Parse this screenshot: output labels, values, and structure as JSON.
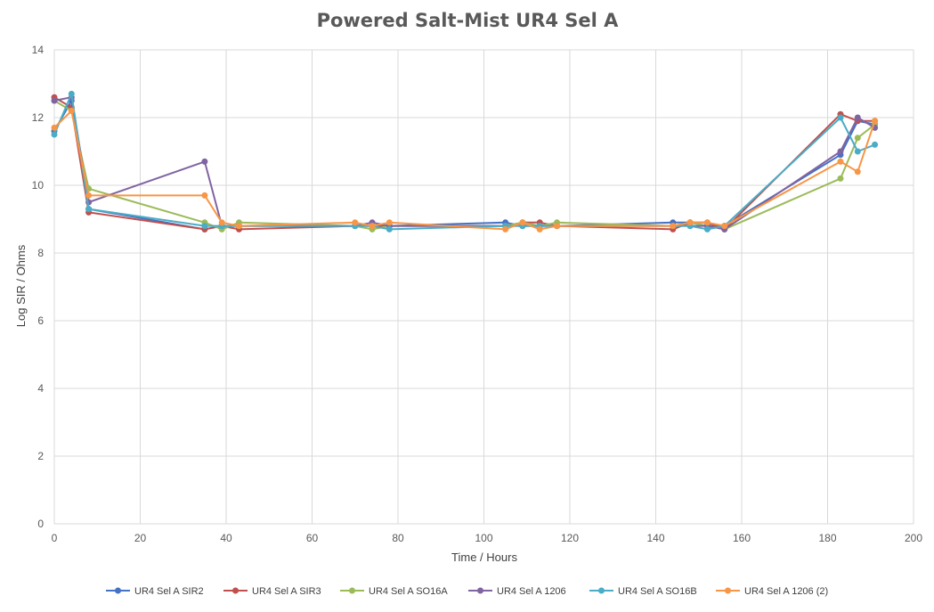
{
  "chart_data": {
    "type": "line",
    "title": "Powered Salt-Mist UR4 Sel A",
    "xlabel": "Time / Hours",
    "ylabel": "Log SIR / Ohms",
    "xlim": [
      0,
      200
    ],
    "ylim": [
      0,
      14
    ],
    "xticks": [
      0,
      20,
      40,
      60,
      80,
      100,
      120,
      140,
      160,
      180,
      200
    ],
    "yticks": [
      0,
      2,
      4,
      6,
      8,
      10,
      12,
      14
    ],
    "grid": true,
    "legend_position": "bottom",
    "series": [
      {
        "name": "UR4 Sel A SIR2",
        "color": "#4472c4",
        "points": [
          [
            0,
            11.6
          ],
          [
            4,
            12.5
          ],
          [
            8,
            9.3
          ],
          [
            35,
            8.7
          ],
          [
            39,
            8.8
          ],
          [
            43,
            8.8
          ],
          [
            70,
            8.8
          ],
          [
            74,
            8.8
          ],
          [
            78,
            8.8
          ],
          [
            105,
            8.9
          ],
          [
            109,
            8.8
          ],
          [
            113,
            8.8
          ],
          [
            117,
            8.8
          ],
          [
            144,
            8.9
          ],
          [
            148,
            8.9
          ],
          [
            152,
            8.8
          ],
          [
            156,
            8.8
          ],
          [
            183,
            10.9
          ],
          [
            187,
            11.9
          ],
          [
            191,
            11.8
          ]
        ]
      },
      {
        "name": "UR4 Sel A SIR3",
        "color": "#c0504d",
        "points": [
          [
            0,
            12.6
          ],
          [
            4,
            12.3
          ],
          [
            8,
            9.2
          ],
          [
            35,
            8.7
          ],
          [
            39,
            8.8
          ],
          [
            43,
            8.7
          ],
          [
            70,
            8.8
          ],
          [
            74,
            8.8
          ],
          [
            78,
            8.8
          ],
          [
            105,
            8.8
          ],
          [
            109,
            8.9
          ],
          [
            113,
            8.9
          ],
          [
            117,
            8.8
          ],
          [
            144,
            8.7
          ],
          [
            148,
            8.9
          ],
          [
            152,
            8.9
          ],
          [
            156,
            8.7
          ],
          [
            183,
            12.1
          ],
          [
            187,
            11.9
          ],
          [
            191,
            11.9
          ]
        ]
      },
      {
        "name": "UR4 Sel A SO16A",
        "color": "#9bbb59",
        "points": [
          [
            0,
            12.5
          ],
          [
            4,
            12.2
          ],
          [
            8,
            9.9
          ],
          [
            35,
            8.9
          ],
          [
            39,
            8.7
          ],
          [
            43,
            8.9
          ],
          [
            70,
            8.8
          ],
          [
            74,
            8.7
          ],
          [
            78,
            8.8
          ],
          [
            105,
            8.8
          ],
          [
            109,
            8.9
          ],
          [
            113,
            8.8
          ],
          [
            117,
            8.9
          ],
          [
            144,
            8.8
          ],
          [
            148,
            8.9
          ],
          [
            152,
            8.8
          ],
          [
            156,
            8.7
          ],
          [
            183,
            10.2
          ],
          [
            187,
            11.4
          ],
          [
            191,
            11.8
          ]
        ]
      },
      {
        "name": "UR4 Sel A 1206",
        "color": "#8064a2",
        "points": [
          [
            0,
            12.5
          ],
          [
            4,
            12.6
          ],
          [
            8,
            9.5
          ],
          [
            35,
            10.7
          ],
          [
            39,
            8.8
          ],
          [
            43,
            8.8
          ],
          [
            70,
            8.8
          ],
          [
            74,
            8.9
          ],
          [
            78,
            8.8
          ],
          [
            105,
            8.8
          ],
          [
            109,
            8.8
          ],
          [
            113,
            8.8
          ],
          [
            117,
            8.8
          ],
          [
            144,
            8.8
          ],
          [
            148,
            8.8
          ],
          [
            152,
            8.8
          ],
          [
            156,
            8.7
          ],
          [
            183,
            11.0
          ],
          [
            187,
            12.0
          ],
          [
            191,
            11.7
          ]
        ]
      },
      {
        "name": "UR4 Sel A SO16B",
        "color": "#4bacc6",
        "points": [
          [
            0,
            11.5
          ],
          [
            4,
            12.7
          ],
          [
            8,
            9.3
          ],
          [
            35,
            8.8
          ],
          [
            39,
            8.8
          ],
          [
            43,
            8.8
          ],
          [
            70,
            8.8
          ],
          [
            74,
            8.8
          ],
          [
            78,
            8.7
          ],
          [
            105,
            8.8
          ],
          [
            109,
            8.8
          ],
          [
            113,
            8.8
          ],
          [
            117,
            8.8
          ],
          [
            144,
            8.8
          ],
          [
            148,
            8.8
          ],
          [
            152,
            8.7
          ],
          [
            156,
            8.8
          ],
          [
            183,
            12.0
          ],
          [
            187,
            11.0
          ],
          [
            191,
            11.2
          ]
        ]
      },
      {
        "name": "UR4 Sel A 1206 (2)",
        "color": "#f79646",
        "points": [
          [
            0,
            11.7
          ],
          [
            4,
            12.2
          ],
          [
            8,
            9.7
          ],
          [
            35,
            9.7
          ],
          [
            39,
            8.9
          ],
          [
            43,
            8.8
          ],
          [
            70,
            8.9
          ],
          [
            74,
            8.8
          ],
          [
            78,
            8.9
          ],
          [
            105,
            8.7
          ],
          [
            109,
            8.9
          ],
          [
            113,
            8.7
          ],
          [
            117,
            8.8
          ],
          [
            144,
            8.8
          ],
          [
            148,
            8.9
          ],
          [
            152,
            8.9
          ],
          [
            156,
            8.8
          ],
          [
            183,
            10.7
          ],
          [
            187,
            10.4
          ],
          [
            191,
            11.9
          ]
        ]
      }
    ]
  }
}
